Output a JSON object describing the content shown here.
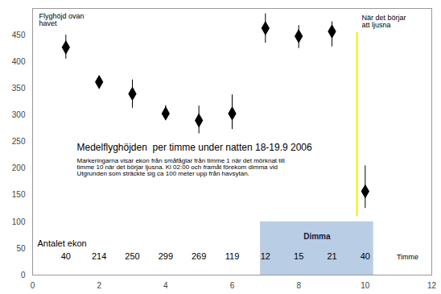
{
  "chart_data": {
    "type": "scatter",
    "title": "Medelflyghöjden  per timme under natten 18-19.9 2006",
    "subtitle": "Markeringarna visar ekon från småfåglar från timme 1 när det mörknat till timme 10 när det börjar ljusna. Kl 02:00 och framåt förekom dimma vid Utgrunden som sträckte sig ca 100 meter upp från havsytan.",
    "xlabel": "Timme",
    "ylabel": "Flyghöjd ovan havet",
    "x": [
      1,
      2,
      3,
      4,
      5,
      6,
      7,
      8,
      9,
      10
    ],
    "values": [
      427,
      362,
      340,
      303,
      290,
      303,
      463,
      448,
      457,
      157
    ],
    "error_low": [
      405,
      352,
      313,
      293,
      265,
      273,
      435,
      425,
      428,
      125
    ],
    "error_high": [
      450,
      373,
      366,
      318,
      317,
      338,
      490,
      468,
      475,
      205
    ],
    "color": "#000000",
    "marker": "diamond",
    "counts_label": "Antalet ekon",
    "counts": [
      40,
      214,
      250,
      299,
      269,
      119,
      12,
      15,
      21,
      40
    ],
    "fog": {
      "label": "Dimma",
      "x_start": 6.85,
      "x_end": 10.25,
      "y_start": 0,
      "y_end": 100,
      "color": "#b9cde5"
    },
    "dawn": {
      "label": "När det börjar att ljusna",
      "x": 9.75,
      "y_start": 110,
      "y_end": 455,
      "color": "#f2f000"
    },
    "xlim": [
      0,
      12
    ],
    "xticks": [
      0,
      2,
      4,
      6,
      8,
      10,
      12
    ],
    "ylim": [
      0,
      500
    ],
    "yticks": [
      0,
      50,
      100,
      150,
      200,
      250,
      300,
      350,
      400,
      450
    ],
    "grid": false
  }
}
